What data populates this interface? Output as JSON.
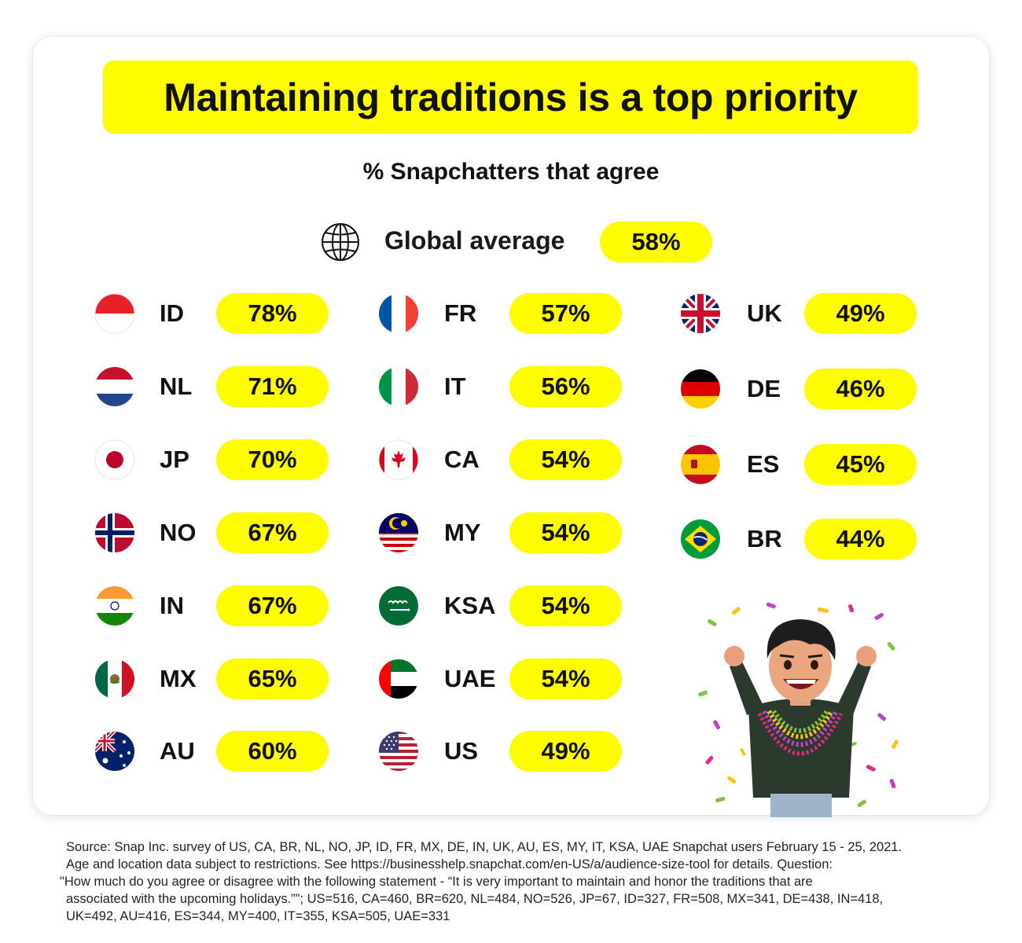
{
  "title": "Maintaining traditions is a top priority",
  "subtitle": "% Snapchatters that agree",
  "global": {
    "label": "Global average",
    "value": "58%",
    "icon": "globe-icon"
  },
  "colors": {
    "accent": "#fffc00",
    "text": "#111111"
  },
  "chart_data": {
    "type": "table",
    "title": "Maintaining traditions is a top priority",
    "subtitle": "% Snapchatters that agree",
    "unit": "%",
    "global_average": 58,
    "categories": [
      "ID",
      "NL",
      "JP",
      "NO",
      "IN",
      "MX",
      "AU",
      "FR",
      "IT",
      "CA",
      "MY",
      "KSA",
      "UAE",
      "US",
      "UK",
      "DE",
      "ES",
      "BR"
    ],
    "values": [
      78,
      71,
      70,
      67,
      67,
      65,
      60,
      57,
      56,
      54,
      54,
      54,
      54,
      49,
      49,
      46,
      45,
      44
    ]
  },
  "rows": [
    {
      "code": "ID",
      "value": "78%",
      "flag": "flag-id"
    },
    {
      "code": "NL",
      "value": "71%",
      "flag": "flag-nl"
    },
    {
      "code": "JP",
      "value": "70%",
      "flag": "flag-jp"
    },
    {
      "code": "NO",
      "value": "67%",
      "flag": "flag-no"
    },
    {
      "code": "IN",
      "value": "67%",
      "flag": "flag-in"
    },
    {
      "code": "MX",
      "value": "65%",
      "flag": "flag-mx"
    },
    {
      "code": "AU",
      "value": "60%",
      "flag": "flag-au"
    },
    {
      "code": "FR",
      "value": "57%",
      "flag": "flag-fr"
    },
    {
      "code": "IT",
      "value": "56%",
      "flag": "flag-it"
    },
    {
      "code": "CA",
      "value": "54%",
      "flag": "flag-ca"
    },
    {
      "code": "MY",
      "value": "54%",
      "flag": "flag-my"
    },
    {
      "code": "KSA",
      "value": "54%",
      "flag": "flag-ksa"
    },
    {
      "code": "UAE",
      "value": "54%",
      "flag": "flag-uae"
    },
    {
      "code": "US",
      "value": "49%",
      "flag": "flag-us"
    },
    {
      "code": "UK",
      "value": "49%",
      "flag": "flag-uk"
    },
    {
      "code": "DE",
      "value": "46%",
      "flag": "flag-de"
    },
    {
      "code": "ES",
      "value": "45%",
      "flag": "flag-es"
    },
    {
      "code": "BR",
      "value": "44%",
      "flag": "flag-br"
    }
  ],
  "footer": {
    "line1": "Source: Snap Inc. survey of US, CA, BR, NL, NO, JP, ID, FR, MX, DE, IN, UK, AU, ES, MY, IT, KSA, UAE Snapchat users February 15 - 25, 2021.",
    "line2": "Age and location data subject to restrictions. See https://businesshelp.snapchat.com/en-US/a/audience-size-tool for details. Question:",
    "line3": "\"How much do you agree or disagree with the following statement - “It is very important to maintain and honor the traditions that are",
    "line4": "associated with the upcoming holidays.”\"; US=516, CA=460, BR=620, NL=484, NO=526, JP=67, ID=327, FR=508, MX=341, DE=438, IN=418,",
    "line5": "UK=492, AU=416, ES=344, MY=400, IT=355, KSA=505, UAE=331"
  }
}
